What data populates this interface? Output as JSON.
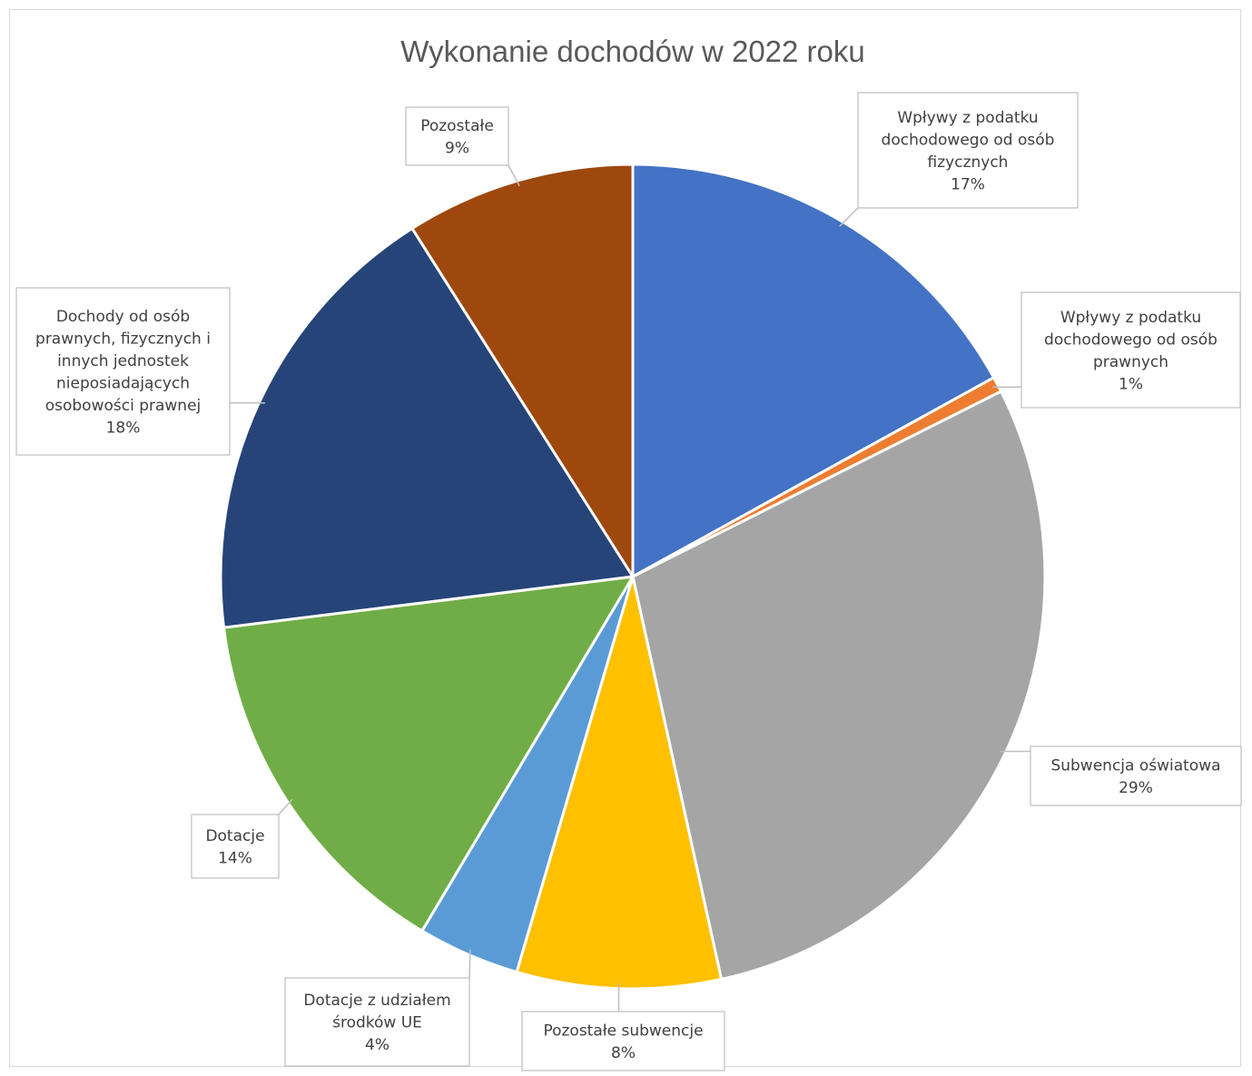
{
  "chart_data": {
    "type": "pie",
    "title": "Wykonanie dochodów w 2022 roku",
    "slices": [
      {
        "name": "Wpływy z podatku dochodowego od osób fizycznych",
        "name_lines": [
          "Wpływy z podatku",
          "dochodowego od osób",
          "fizycznych"
        ],
        "value": 17,
        "pct_label": "17%",
        "color": "#4472C4"
      },
      {
        "name": "Wpływy z podatku dochodowego od osób prawnych",
        "name_lines": [
          "Wpływy z podatku",
          "dochodowego od osób",
          "prawnych"
        ],
        "value": 0.6,
        "pct_label": "1%",
        "color": "#ED7D31"
      },
      {
        "name": "Subwencja oświatowa",
        "name_lines": [
          "Subwencja oświatowa"
        ],
        "value": 29,
        "pct_label": "29%",
        "color": "#A5A5A5"
      },
      {
        "name": "Pozostałe subwencje",
        "name_lines": [
          "Pozostałe subwencje"
        ],
        "value": 8,
        "pct_label": "8%",
        "color": "#FFC000"
      },
      {
        "name": "Dotacje z udziałem środków UE",
        "name_lines": [
          "Dotacje z udziałem",
          "środków UE"
        ],
        "value": 4,
        "pct_label": "4%",
        "color": "#5B9BD5"
      },
      {
        "name": "Dotacje",
        "name_lines": [
          "Dotacje"
        ],
        "value": 14.5,
        "pct_label": "14%",
        "color": "#70AD47"
      },
      {
        "name": "Dochody od osób prawnych, fizycznych i innych jednostek nieposiadających osobowości prawnej",
        "name_lines": [
          "Dochody od osób",
          "prawnych, fizycznych i",
          "innych jednostek",
          "nieposiadających",
          "osobowości prawnej"
        ],
        "value": 18,
        "pct_label": "18%",
        "color": "#264478"
      },
      {
        "name": "Pozostałe",
        "name_lines": [
          "Pozostałe"
        ],
        "value": 9,
        "pct_label": "9%",
        "color": "#9E480E"
      }
    ]
  }
}
